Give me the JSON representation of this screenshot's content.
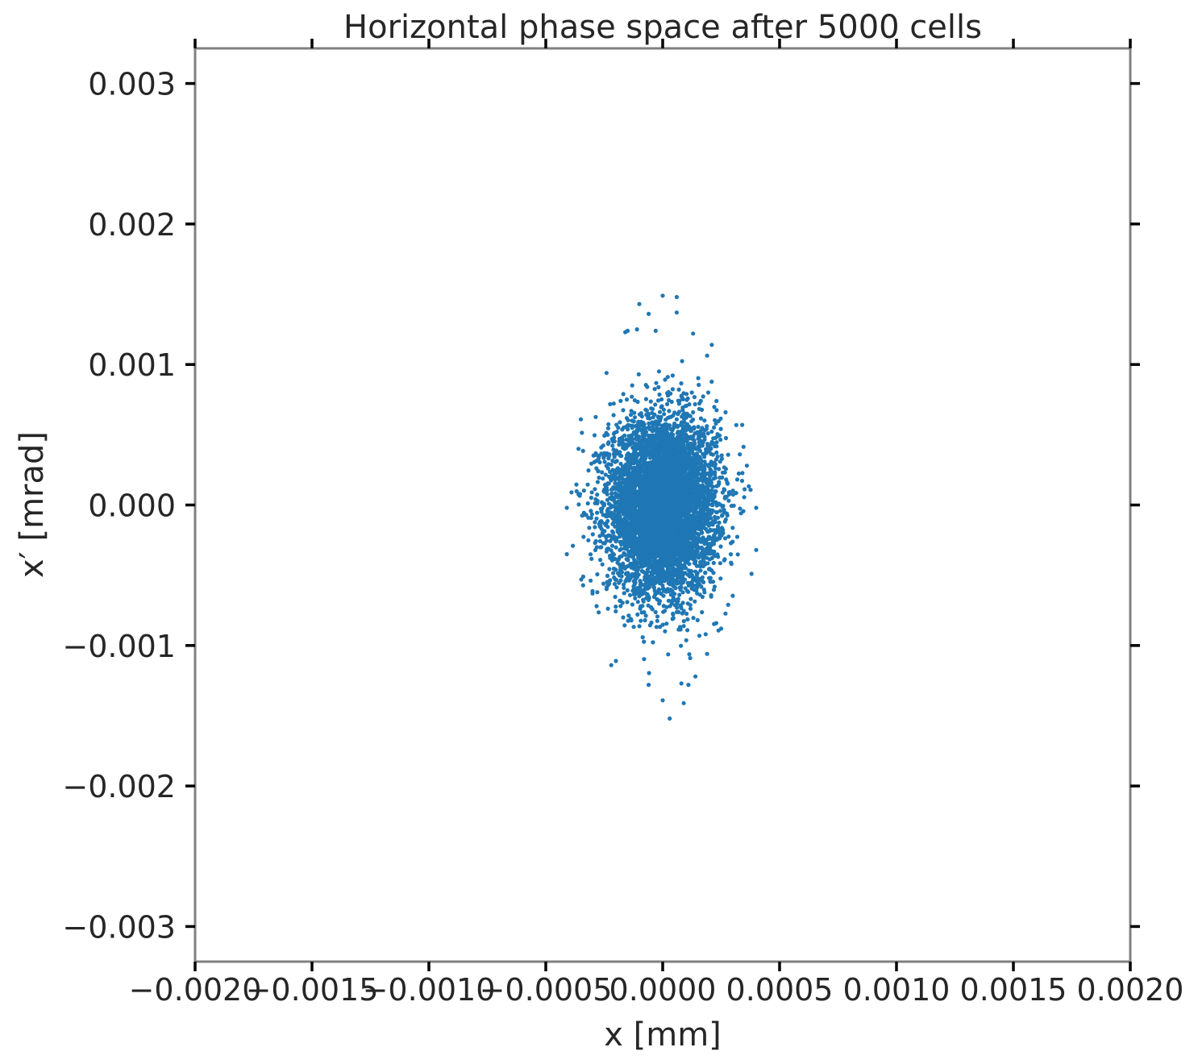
{
  "chart_data": {
    "type": "scatter",
    "title": "Horizontal phase space after 5000 cells",
    "xlabel": "x [mm]",
    "ylabel": "x′ [mrad]",
    "xlim": [
      -0.002,
      0.002
    ],
    "ylim": [
      -0.00325,
      0.00325
    ],
    "x_ticks": [
      -0.002,
      -0.0015,
      -0.001,
      -0.0005,
      0.0,
      0.0005,
      0.001,
      0.0015,
      0.002
    ],
    "x_tick_labels": [
      "−0.0020",
      "−0.0015",
      "−0.0010",
      "−0.0005",
      "0.0000",
      "0.0005",
      "0.0010",
      "0.0015",
      "0.0020"
    ],
    "y_ticks": [
      0.003,
      0.002,
      0.001,
      0.0,
      -0.001,
      -0.002,
      -0.003
    ],
    "y_tick_labels": [
      "0.003",
      "0.002",
      "0.001",
      "0.000",
      "−0.001",
      "−0.002",
      "−0.003"
    ],
    "grid": false,
    "marker_color": "#1f77b4",
    "frame_color": "#808080",
    "series": [
      {
        "distribution": "gaussian-cloud",
        "center": [
          0.0,
          0.0
        ],
        "sigma": [
          0.000115,
          0.00031
        ],
        "count": 6000,
        "x_range": [
          -0.00041,
          0.0004
        ],
        "y_range": [
          -0.00152,
          0.00149
        ],
        "outliers": [
          [
            0.0,
            0.00149
          ],
          [
            6e-05,
            0.00148
          ],
          [
            -0.0001,
            0.00143
          ],
          [
            6e-05,
            0.00137
          ],
          [
            -6e-05,
            0.00136
          ],
          [
            -0.00015,
            0.00124
          ],
          [
            -0.00011,
            0.00125
          ],
          [
            -0.00016,
            0.00123
          ],
          [
            0.00013,
            0.00122
          ],
          [
            -3e-05,
            0.00124
          ],
          [
            0.00021,
            0.00114
          ],
          [
            -0.00024,
            0.00094
          ],
          [
            0.00023,
            0.00074
          ],
          [
            -0.00035,
            0.00061
          ],
          [
            0.00034,
            0.00057
          ],
          [
            -0.00036,
            0.0004
          ],
          [
            0.00036,
            0.00028
          ],
          [
            -0.00039,
            9e-05
          ],
          [
            0.0004,
            -2e-05
          ],
          [
            -0.00041,
            -2e-05
          ],
          [
            -0.00041,
            -0.00035
          ],
          [
            0.0004,
            -0.00032
          ],
          [
            0.00038,
            -0.00049
          ],
          [
            -0.00034,
            -0.00051
          ],
          [
            -0.0003,
            -0.00063
          ],
          [
            0.00028,
            -0.00071
          ],
          [
            0.00025,
            -0.00088
          ],
          [
            -0.0002,
            -0.00111
          ],
          [
            -0.00022,
            -0.00114
          ],
          [
            0.00014,
            -0.00122
          ],
          [
            8e-05,
            -0.00127
          ],
          [
            -6e-05,
            -0.00128
          ],
          [
            0.00011,
            -0.00128
          ],
          [
            9e-05,
            -0.00141
          ],
          [
            0.0,
            -0.00139
          ],
          [
            3e-05,
            -0.00152
          ]
        ]
      }
    ]
  }
}
